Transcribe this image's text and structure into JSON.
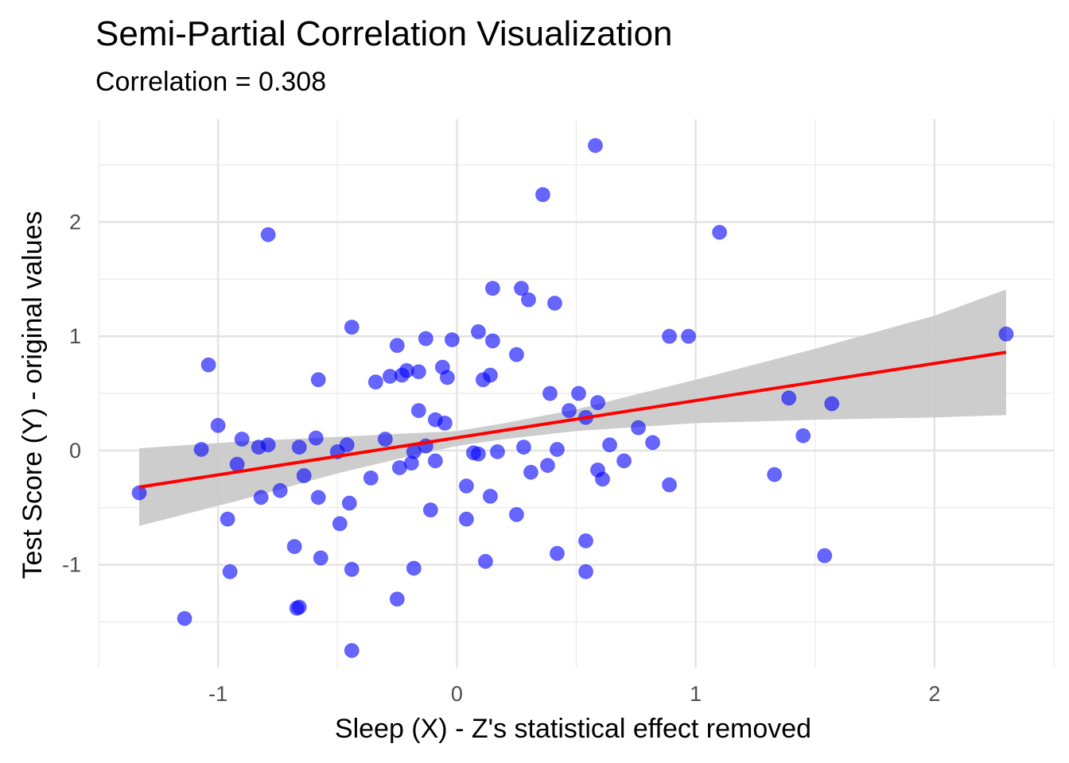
{
  "title": "Semi-Partial Correlation Visualization",
  "subtitle": "Correlation = 0.308",
  "chart_data": {
    "type": "scatter",
    "title": "Semi-Partial Correlation Visualization",
    "subtitle": "Correlation = 0.308",
    "xlabel": "Sleep (X) - Z's statistical effect removed",
    "ylabel": "Test Score (Y) - original values",
    "xlim": [
      -1.5,
      2.5
    ],
    "ylim": [
      -1.9,
      2.9
    ],
    "x_ticks": [
      -1,
      0,
      1,
      2
    ],
    "y_ticks": [
      -1,
      0,
      1,
      2
    ],
    "x_tick_labels": [
      "-1",
      "0",
      "1",
      "2"
    ],
    "y_tick_labels": [
      "-1",
      "0",
      "1",
      "2"
    ],
    "grid": true,
    "legend": "none",
    "colors": {
      "points": "#0000ff",
      "fit_line": "#ff0000",
      "ci_band": "#c8c8c8"
    },
    "points": [
      {
        "x": -1.33,
        "y": -0.37
      },
      {
        "x": -1.14,
        "y": -1.47
      },
      {
        "x": -1.07,
        "y": 0.01
      },
      {
        "x": -1.04,
        "y": 0.75
      },
      {
        "x": -1.0,
        "y": 0.22
      },
      {
        "x": -0.96,
        "y": -0.6
      },
      {
        "x": -0.95,
        "y": -1.06
      },
      {
        "x": -0.92,
        "y": -0.12
      },
      {
        "x": -0.9,
        "y": 0.1
      },
      {
        "x": -0.83,
        "y": 0.03
      },
      {
        "x": -0.82,
        "y": -0.41
      },
      {
        "x": -0.79,
        "y": 0.05
      },
      {
        "x": -0.79,
        "y": 1.89
      },
      {
        "x": -0.74,
        "y": -0.35
      },
      {
        "x": -0.68,
        "y": -0.84
      },
      {
        "x": -0.67,
        "y": -1.38
      },
      {
        "x": -0.66,
        "y": -1.37
      },
      {
        "x": -0.66,
        "y": 0.03
      },
      {
        "x": -0.64,
        "y": -0.22
      },
      {
        "x": -0.59,
        "y": 0.11
      },
      {
        "x": -0.58,
        "y": -0.41
      },
      {
        "x": -0.58,
        "y": 0.62
      },
      {
        "x": -0.57,
        "y": -0.94
      },
      {
        "x": -0.5,
        "y": -0.01
      },
      {
        "x": -0.49,
        "y": -0.64
      },
      {
        "x": -0.46,
        "y": 0.05
      },
      {
        "x": -0.45,
        "y": -0.46
      },
      {
        "x": -0.44,
        "y": -1.04
      },
      {
        "x": -0.44,
        "y": 1.08
      },
      {
        "x": -0.44,
        "y": -1.75
      },
      {
        "x": -0.36,
        "y": -0.24
      },
      {
        "x": -0.34,
        "y": 0.6
      },
      {
        "x": -0.3,
        "y": 0.1
      },
      {
        "x": -0.28,
        "y": 0.65
      },
      {
        "x": -0.25,
        "y": -1.3
      },
      {
        "x": -0.25,
        "y": 0.92
      },
      {
        "x": -0.24,
        "y": -0.15
      },
      {
        "x": -0.23,
        "y": 0.66
      },
      {
        "x": -0.21,
        "y": 0.7
      },
      {
        "x": -0.19,
        "y": -0.11
      },
      {
        "x": -0.18,
        "y": -0.01
      },
      {
        "x": -0.18,
        "y": -1.03
      },
      {
        "x": -0.16,
        "y": 0.35
      },
      {
        "x": -0.16,
        "y": 0.69
      },
      {
        "x": -0.13,
        "y": 0.04
      },
      {
        "x": -0.13,
        "y": 0.98
      },
      {
        "x": -0.11,
        "y": -0.52
      },
      {
        "x": -0.09,
        "y": -0.09
      },
      {
        "x": -0.09,
        "y": 0.27
      },
      {
        "x": -0.06,
        "y": 0.73
      },
      {
        "x": -0.05,
        "y": 0.24
      },
      {
        "x": -0.04,
        "y": 0.64
      },
      {
        "x": -0.02,
        "y": 0.97
      },
      {
        "x": 0.04,
        "y": -0.6
      },
      {
        "x": 0.04,
        "y": -0.31
      },
      {
        "x": 0.07,
        "y": -0.02
      },
      {
        "x": 0.09,
        "y": -0.03
      },
      {
        "x": 0.09,
        "y": 1.04
      },
      {
        "x": 0.11,
        "y": 0.62
      },
      {
        "x": 0.12,
        "y": -0.97
      },
      {
        "x": 0.14,
        "y": 0.66
      },
      {
        "x": 0.14,
        "y": -0.4
      },
      {
        "x": 0.15,
        "y": 0.96
      },
      {
        "x": 0.15,
        "y": 1.42
      },
      {
        "x": 0.17,
        "y": -0.01
      },
      {
        "x": 0.25,
        "y": -0.56
      },
      {
        "x": 0.25,
        "y": 0.84
      },
      {
        "x": 0.27,
        "y": 1.42
      },
      {
        "x": 0.28,
        "y": 0.03
      },
      {
        "x": 0.3,
        "y": 1.32
      },
      {
        "x": 0.31,
        "y": -0.19
      },
      {
        "x": 0.36,
        "y": 2.24
      },
      {
        "x": 0.38,
        "y": -0.13
      },
      {
        "x": 0.39,
        "y": 0.5
      },
      {
        "x": 0.41,
        "y": 1.29
      },
      {
        "x": 0.42,
        "y": -0.9
      },
      {
        "x": 0.42,
        "y": 0.01
      },
      {
        "x": 0.47,
        "y": 0.35
      },
      {
        "x": 0.51,
        "y": 0.5
      },
      {
        "x": 0.54,
        "y": -1.06
      },
      {
        "x": 0.54,
        "y": -0.79
      },
      {
        "x": 0.54,
        "y": 0.29
      },
      {
        "x": 0.58,
        "y": 2.67
      },
      {
        "x": 0.59,
        "y": -0.17
      },
      {
        "x": 0.59,
        "y": 0.42
      },
      {
        "x": 0.61,
        "y": -0.25
      },
      {
        "x": 0.64,
        "y": 0.05
      },
      {
        "x": 0.7,
        "y": -0.09
      },
      {
        "x": 0.76,
        "y": 0.2
      },
      {
        "x": 0.82,
        "y": 0.07
      },
      {
        "x": 0.89,
        "y": -0.3
      },
      {
        "x": 0.89,
        "y": 1.0
      },
      {
        "x": 0.97,
        "y": 1.0
      },
      {
        "x": 1.1,
        "y": 1.91
      },
      {
        "x": 1.33,
        "y": -0.21
      },
      {
        "x": 1.39,
        "y": 0.46
      },
      {
        "x": 1.45,
        "y": 0.13
      },
      {
        "x": 1.54,
        "y": -0.92
      },
      {
        "x": 1.57,
        "y": 0.41
      },
      {
        "x": 2.3,
        "y": 1.02
      }
    ],
    "fit_line": {
      "x": [
        -1.33,
        2.3
      ],
      "y": [
        -0.32,
        0.86
      ]
    },
    "ci_band": {
      "x": [
        -1.33,
        -0.9,
        -0.5,
        -0.2,
        0.0,
        0.2,
        0.5,
        1.0,
        1.5,
        2.0,
        2.3
      ],
      "lower": [
        -0.66,
        -0.43,
        -0.2,
        -0.05,
        0.04,
        0.1,
        0.17,
        0.24,
        0.27,
        0.29,
        0.31
      ],
      "upper": [
        0.02,
        0.08,
        0.12,
        0.15,
        0.17,
        0.24,
        0.36,
        0.62,
        0.89,
        1.18,
        1.41
      ]
    }
  }
}
